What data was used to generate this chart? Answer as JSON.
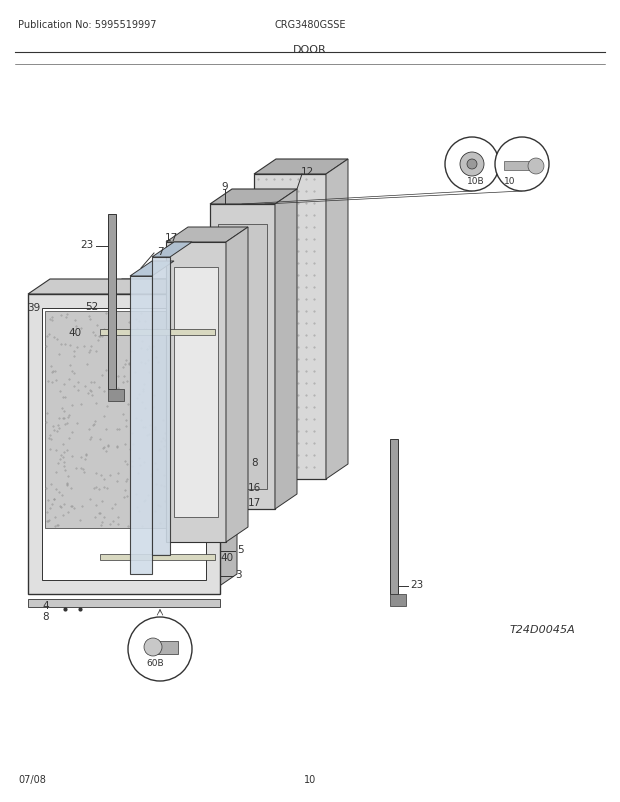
{
  "title_left": "Publication No: 5995519997",
  "title_center": "CRG3480GSSE",
  "title_section": "DOOR",
  "footer_left": "07/08",
  "footer_center": "10",
  "diagram_label": "T24D0045A",
  "bg_color": "#ffffff",
  "line_color": "#333333",
  "gray_fill": "#d8d8d8",
  "light_gray": "#eeeeee",
  "mid_gray": "#bbbbbb",
  "dark_gray": "#888888",
  "part_font_size": 7.5
}
